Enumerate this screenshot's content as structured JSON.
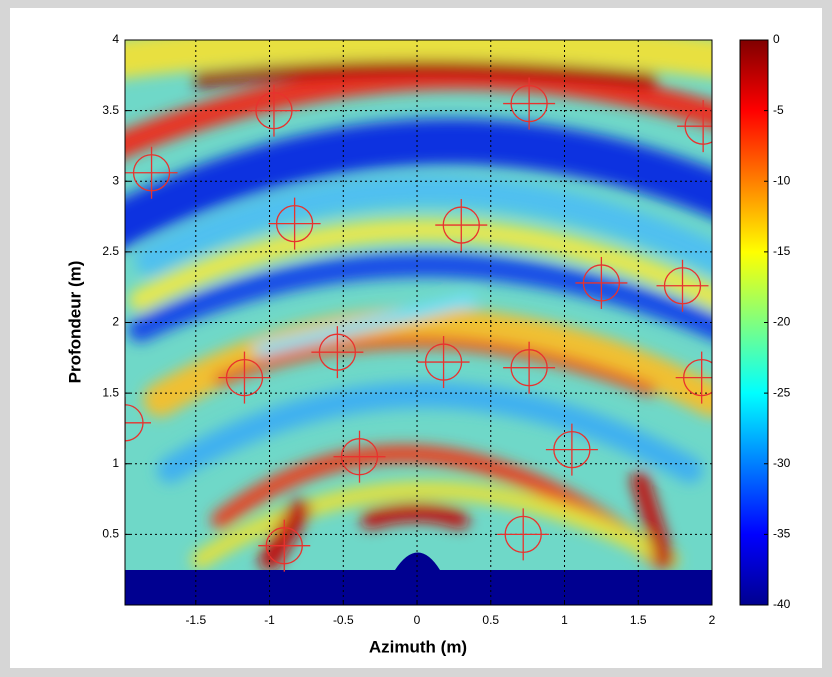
{
  "chart_data": {
    "type": "heatmap",
    "x_label": "Azimuth (m)",
    "y_label": "Profondeur (m)",
    "xlim": [
      -1.98,
      2
    ],
    "ylim": [
      0,
      4
    ],
    "xticks": [
      -1.5,
      -1,
      -0.5,
      0,
      0.5,
      1,
      1.5,
      2
    ],
    "yticks": [
      0.5,
      1,
      1.5,
      2,
      2.5,
      3,
      3.5,
      4
    ],
    "grid": true,
    "clim": [
      -40,
      0
    ],
    "cticks": [
      0,
      -5,
      -10,
      -15,
      -20,
      -25,
      -30,
      -35,
      -40
    ],
    "colormap": "jet",
    "targets": {
      "color": "#e8322e",
      "x": [
        -0.97,
        0.76,
        1.94,
        -1.8,
        -0.83,
        0.3,
        1.25,
        1.8,
        -0.54,
        0.18,
        0.76,
        -1.17,
        1.93,
        -1.98,
        -0.39,
        1.05,
        0.72,
        -0.9
      ],
      "y": [
        3.5,
        3.55,
        3.39,
        3.06,
        2.7,
        2.69,
        2.28,
        2.26,
        1.79,
        1.72,
        1.68,
        1.61,
        1.61,
        1.29,
        1.05,
        1.1,
        0.5,
        0.42
      ]
    }
  }
}
